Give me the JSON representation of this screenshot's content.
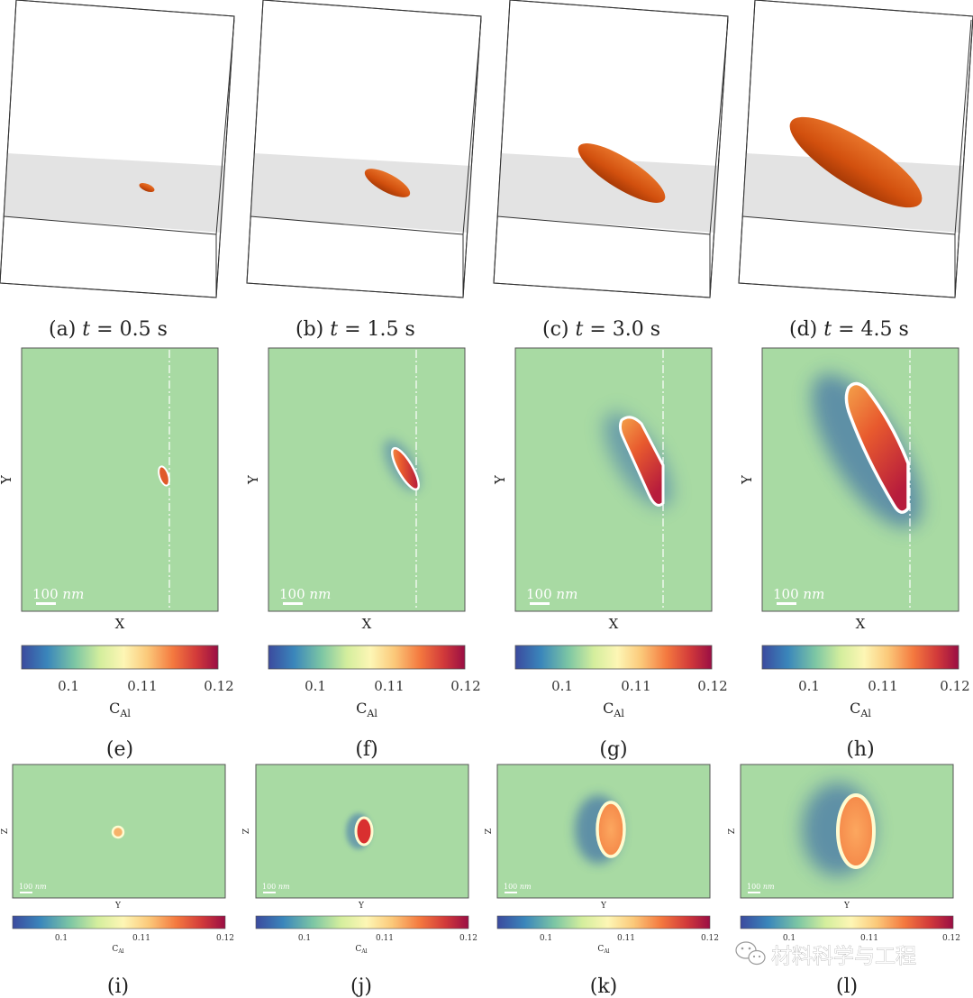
{
  "figure": {
    "row1_captions": [
      {
        "label": "(a)",
        "var": "t",
        "eq": "=",
        "value": "0.5",
        "unit": "s"
      },
      {
        "label": "(b)",
        "var": "t",
        "eq": "=",
        "value": "1.5",
        "unit": "s"
      },
      {
        "label": "(c)",
        "var": "t",
        "eq": "=",
        "value": "3.0",
        "unit": "s"
      },
      {
        "label": "(d)",
        "var": "t",
        "eq": "=",
        "value": "4.5",
        "unit": "s"
      }
    ],
    "row2_captions": [
      "(e)",
      "(f)",
      "(g)",
      "(h)"
    ],
    "row3_captions": [
      "(i)",
      "(j)",
      "(k)",
      "(l)"
    ],
    "row2_axes": {
      "x": "X",
      "y": "Y"
    },
    "row3_axes": {
      "x": "Y",
      "y": "Z"
    },
    "scale_bar": {
      "value": "100",
      "unit": "nm"
    },
    "colorbar": {
      "label_main": "C",
      "label_sub": "Al",
      "ticks": [
        "0.1",
        "0.11",
        "0.12"
      ],
      "tick_values": [
        0.1,
        0.11,
        0.12
      ],
      "range": [
        0.09,
        0.12
      ]
    },
    "colors": {
      "matrix_green": "#a8daa3",
      "precipitate_orange": "#d95b12",
      "plane_gray": "#e3e3e3",
      "colormap": [
        "#3b4a9e",
        "#3a86bb",
        "#7cc6a4",
        "#d4ee9d",
        "#fdf6b5",
        "#fbc97a",
        "#f4793f",
        "#d23a3a",
        "#9a0e44"
      ]
    },
    "watermark": "材料科学与工程",
    "watermark_icon": "wechat-icon"
  }
}
